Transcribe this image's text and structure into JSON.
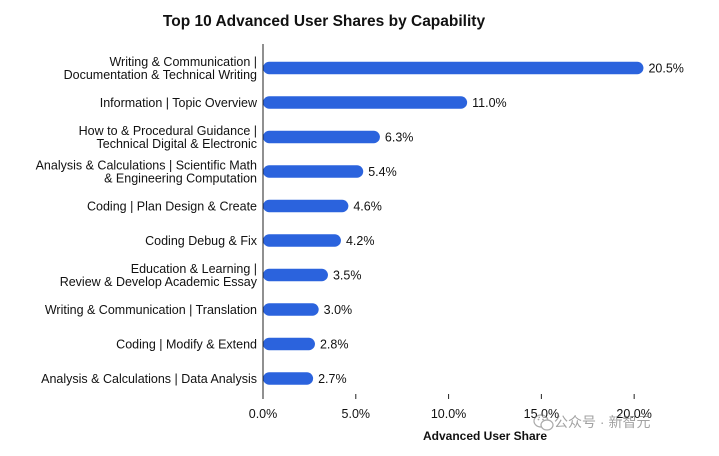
{
  "chart_data": {
    "type": "bar",
    "orientation": "horizontal",
    "title": "Top 10 Advanced User Shares by Capability",
    "xlabel": "Advanced User Share",
    "ylabel": "",
    "xlim": [
      0,
      21.5
    ],
    "xticks": [
      0,
      5,
      10,
      15,
      20
    ],
    "xtick_labels": [
      "0.0%",
      "5.0%",
      "10.0%",
      "15.0%",
      "20.0%"
    ],
    "grid": false,
    "bar_color": "#2b63dd",
    "categories": [
      [
        "Writing & Communication |",
        "Documentation & Technical Writing"
      ],
      [
        "Information | Topic Overview"
      ],
      [
        "How to & Procedural Guidance |",
        "Technical Digital & Electronic"
      ],
      [
        "Analysis & Calculations | Scientific Math",
        "& Engineering Computation"
      ],
      [
        "Coding | Plan Design & Create"
      ],
      [
        "Coding Debug & Fix"
      ],
      [
        "Education & Learning |",
        "Review & Develop Academic Essay"
      ],
      [
        "Writing & Communication | Translation"
      ],
      [
        "Coding | Modify & Extend"
      ],
      [
        "Analysis & Calculations | Data Analysis"
      ]
    ],
    "values": [
      20.5,
      11.0,
      6.3,
      5.4,
      4.6,
      4.2,
      3.5,
      3.0,
      2.8,
      2.7
    ],
    "value_labels": [
      "20.5%",
      "11.0%",
      "6.3%",
      "5.4%",
      "4.6%",
      "4.2%",
      "3.5%",
      "3.0%",
      "2.8%",
      "2.7%"
    ]
  },
  "watermark": {
    "text": "公众号 · 新智元"
  }
}
